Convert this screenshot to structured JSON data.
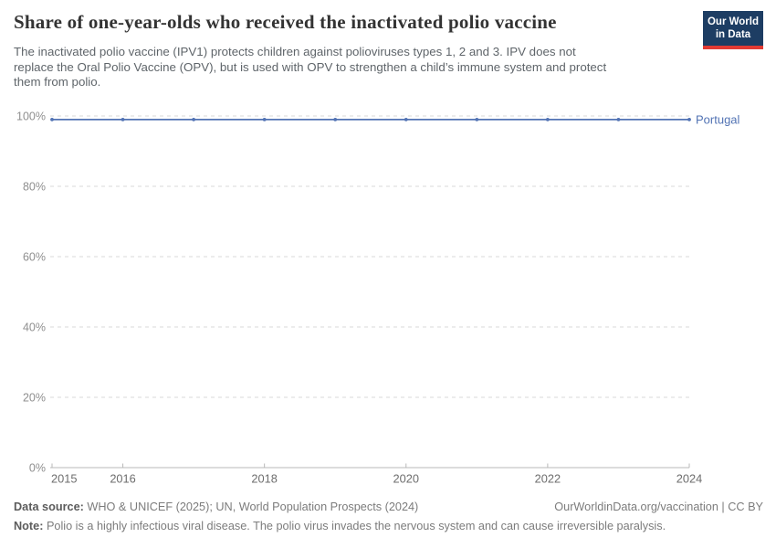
{
  "header": {
    "subtitle_lines": [
      "The inactivated polio vaccine (IPV1) protects children against polioviruses types 1, 2 and 3. IPV does not",
      "replace the Oral Polio Vaccine (OPV), but is used with OPV to strengthen a child’s immune system and protect",
      "them from polio."
    ],
    "logo": {
      "line1": "Our World",
      "line2": "in Data",
      "bg_color": "#1d3d63",
      "accent_color": "#e23a33"
    }
  },
  "chart_data": {
    "type": "line",
    "title": "Share of one-year-olds who received the inactivated polio vaccine",
    "subtitle": "The inactivated polio vaccine (IPV1) protects children against polioviruses types 1, 2 and 3. IPV does not replace the Oral Polio Vaccine (OPV), but is used with OPV to strengthen a child’s immune system and protect them from polio.",
    "unit": "%",
    "x": [
      2015,
      2016,
      2017,
      2018,
      2019,
      2020,
      2021,
      2022,
      2023,
      2024
    ],
    "series": [
      {
        "name": "Portugal",
        "color": "#5273b4",
        "values": [
          99,
          99,
          99,
          99,
          99,
          99,
          99,
          99,
          99,
          99
        ]
      }
    ],
    "xlim": [
      2015,
      2024
    ],
    "ylim": [
      0,
      100
    ],
    "yticks": [
      {
        "value": 0,
        "label": "0%"
      },
      {
        "value": 20,
        "label": "20%"
      },
      {
        "value": 40,
        "label": "40%"
      },
      {
        "value": 60,
        "label": "60%"
      },
      {
        "value": 80,
        "label": "80%"
      },
      {
        "value": 100,
        "label": "100%"
      }
    ],
    "xticks": [
      {
        "value": 2015,
        "label": "2015"
      },
      {
        "value": 2016,
        "label": "2016"
      },
      {
        "value": 2018,
        "label": "2018"
      },
      {
        "value": 2020,
        "label": "2020"
      },
      {
        "value": 2022,
        "label": "2022"
      },
      {
        "value": 2024,
        "label": "2024"
      }
    ],
    "grid": "horizontal-dashed",
    "legend_position": "end-of-line"
  },
  "footer": {
    "datasource_label": "Data source:",
    "datasource_text": " WHO & UNICEF (2025); UN, World Population Prospects (2024)",
    "attribution": "OurWorldinData.org/vaccination | CC BY",
    "note_label": "Note:",
    "note_text": " Polio is a highly infectious viral disease. The polio virus invades the nervous system and can cause irreversible paralysis."
  }
}
